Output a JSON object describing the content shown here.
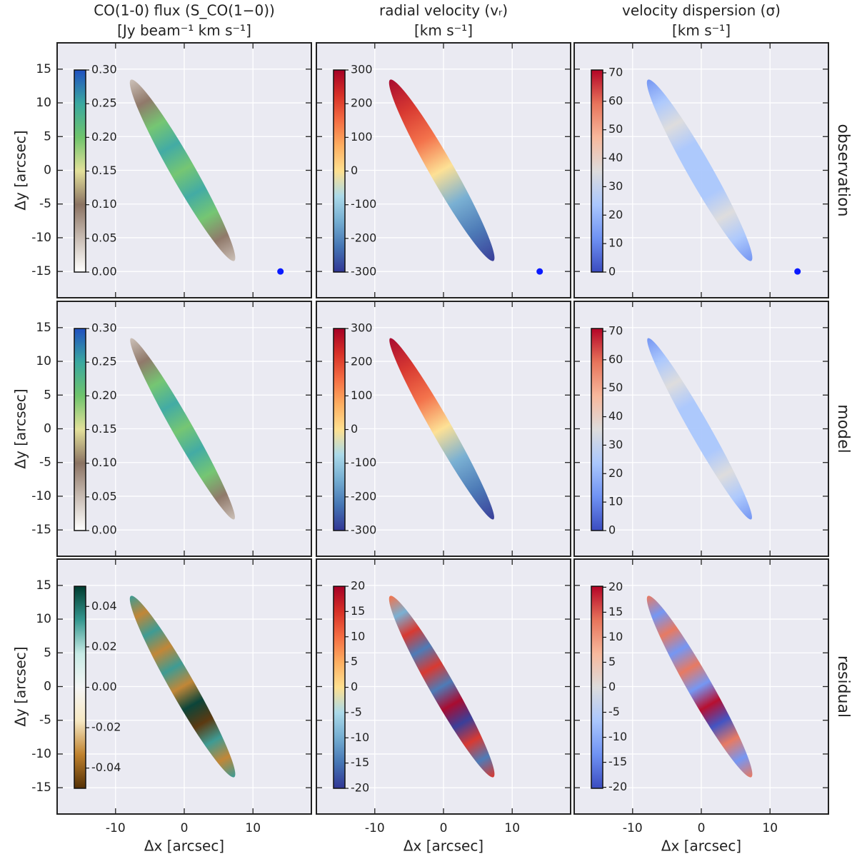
{
  "chart_data": [
    {
      "type": "image",
      "title": [
        "CO(1-0) flux (S_CO(1−0))",
        "[Jy beam⁻¹ km s⁻¹]"
      ],
      "ylabel": "Δy [arcsec]",
      "xlim": [
        -18.5,
        18.5
      ],
      "ylim": [
        -18.9,
        18.9
      ],
      "xticks": [
        -10,
        0,
        10
      ],
      "yticks": [
        -15,
        -10,
        -5,
        0,
        5,
        10,
        15
      ],
      "show_xticklabels": false,
      "show_yticklabels": true,
      "grid": true,
      "clim": [
        0,
        0.3
      ],
      "cticks": [
        {
          "value": 0,
          "label": "0.00"
        },
        0.05,
        {
          "value": 0.1,
          "label": "0.10"
        },
        0.15,
        {
          "value": 0.2,
          "label": "0.20"
        },
        0.25,
        {
          "value": 0.3,
          "label": "0.30"
        }
      ],
      "colormap": [
        "#ffffff",
        "#c9bdb4",
        "#8b7363",
        "#e3e09a",
        "#6fc46c",
        "#3aa8a0",
        "#2050c0"
      ]
    },
    {
      "type": "image",
      "title": [
        "radial velocity (vᵣ)",
        "[km s⁻¹]"
      ],
      "xlim": [
        -18.5,
        18.5
      ],
      "ylim": [
        -18.9,
        18.9
      ],
      "xticks": [
        -10,
        0,
        10
      ],
      "yticks": [
        -15,
        -10,
        -5,
        0,
        5,
        10,
        15
      ],
      "show_xticklabels": false,
      "show_yticklabels": false,
      "grid": true,
      "clim": [
        -300,
        300
      ],
      "cticks": [
        -300,
        -200,
        -100,
        0,
        100,
        200,
        300
      ],
      "colormap": [
        "#313695",
        "#4575b4",
        "#74add1",
        "#abd9e9",
        "#fee090",
        "#fdae61",
        "#f46d43",
        "#d73027",
        "#a50026"
      ]
    },
    {
      "type": "image",
      "title": [
        "velocity dispersion (σ)",
        "[km s⁻¹]"
      ],
      "row_label": "observation",
      "xlim": [
        -18.5,
        18.5
      ],
      "ylim": [
        -18.9,
        18.9
      ],
      "xticks": [
        -10,
        0,
        10
      ],
      "yticks": [
        -15,
        -10,
        -5,
        0,
        5,
        10,
        15
      ],
      "show_xticklabels": false,
      "show_yticklabels": false,
      "grid": true,
      "clim": [
        0,
        71
      ],
      "cticks": [
        0,
        10,
        20,
        30,
        40,
        50,
        60,
        70
      ],
      "colormap": [
        "#3b4cc0",
        "#6f92f3",
        "#aac7fd",
        "#dddcdc",
        "#f7b89c",
        "#e7745b",
        "#b40426"
      ]
    },
    {
      "type": "image",
      "ylabel": "Δy [arcsec]",
      "xlim": [
        -18.5,
        18.5
      ],
      "ylim": [
        -18.9,
        18.9
      ],
      "xticks": [
        -10,
        0,
        10
      ],
      "yticks": [
        -15,
        -10,
        -5,
        0,
        5,
        10,
        15
      ],
      "show_xticklabels": false,
      "show_yticklabels": true,
      "grid": true,
      "clim": [
        0,
        0.3
      ],
      "cticks": [
        {
          "value": 0,
          "label": "0.00"
        },
        0.05,
        {
          "value": 0.1,
          "label": "0.10"
        },
        0.15,
        {
          "value": 0.2,
          "label": "0.20"
        },
        0.25,
        {
          "value": 0.3,
          "label": "0.30"
        }
      ],
      "colormap": [
        "#ffffff",
        "#c9bdb4",
        "#8b7363",
        "#e3e09a",
        "#6fc46c",
        "#3aa8a0",
        "#2050c0"
      ]
    },
    {
      "type": "image",
      "xlim": [
        -18.5,
        18.5
      ],
      "ylim": [
        -18.9,
        18.9
      ],
      "xticks": [
        -10,
        0,
        10
      ],
      "yticks": [
        -15,
        -10,
        -5,
        0,
        5,
        10,
        15
      ],
      "show_xticklabels": false,
      "show_yticklabels": false,
      "grid": true,
      "clim": [
        -300,
        300
      ],
      "cticks": [
        -300,
        -200,
        -100,
        0,
        100,
        200,
        300
      ],
      "colormap": [
        "#313695",
        "#4575b4",
        "#74add1",
        "#abd9e9",
        "#fee090",
        "#fdae61",
        "#f46d43",
        "#d73027",
        "#a50026"
      ]
    },
    {
      "type": "image",
      "row_label": "model",
      "xlim": [
        -18.5,
        18.5
      ],
      "ylim": [
        -18.9,
        18.9
      ],
      "xticks": [
        -10,
        0,
        10
      ],
      "yticks": [
        -15,
        -10,
        -5,
        0,
        5,
        10,
        15
      ],
      "show_xticklabels": false,
      "show_yticklabels": false,
      "grid": true,
      "clim": [
        0,
        71
      ],
      "cticks": [
        0,
        10,
        20,
        30,
        40,
        50,
        60,
        70
      ],
      "colormap": [
        "#3b4cc0",
        "#6f92f3",
        "#aac7fd",
        "#dddcdc",
        "#f7b89c",
        "#e7745b",
        "#b40426"
      ]
    },
    {
      "type": "image",
      "ylabel": "Δy [arcsec]",
      "xlabel": "Δx [arcsec]",
      "xlim": [
        -18.5,
        18.5
      ],
      "ylim": [
        -18.9,
        18.9
      ],
      "xticks": [
        -10,
        0,
        10
      ],
      "yticks": [
        -15,
        -10,
        -5,
        0,
        5,
        10,
        15
      ],
      "show_xticklabels": true,
      "show_yticklabels": true,
      "grid": true,
      "clim": [
        -0.05,
        0.05
      ],
      "cticks": [
        -0.04,
        -0.02,
        {
          "value": 0,
          "label": "0.00"
        },
        0.02,
        0.04
      ],
      "colormap": [
        "#543005",
        "#bf812d",
        "#f6e8c3",
        "#f5f5f5",
        "#c7eae5",
        "#35978f",
        "#003c30"
      ]
    },
    {
      "type": "image",
      "xlabel": "Δx [arcsec]",
      "xlim": [
        -18.5,
        18.5
      ],
      "ylim": [
        -18.9,
        18.9
      ],
      "xticks": [
        -10,
        0,
        10
      ],
      "yticks": [
        -15,
        -10,
        -5,
        0,
        5,
        10,
        15
      ],
      "show_xticklabels": true,
      "show_yticklabels": false,
      "grid": true,
      "clim": [
        -20,
        20
      ],
      "cticks": [
        -20,
        -15,
        -10,
        -5,
        0,
        5,
        10,
        15,
        20
      ],
      "colormap": [
        "#313695",
        "#4575b4",
        "#74add1",
        "#abd9e9",
        "#fee090",
        "#fdae61",
        "#f46d43",
        "#d73027",
        "#a50026"
      ]
    },
    {
      "type": "image",
      "xlabel": "Δx [arcsec]",
      "row_label": "residual",
      "xlim": [
        -18.5,
        18.5
      ],
      "ylim": [
        -18.9,
        18.9
      ],
      "xticks": [
        -10,
        0,
        10
      ],
      "yticks": [
        -15,
        -10,
        -5,
        0,
        5,
        10,
        15
      ],
      "show_xticklabels": true,
      "show_yticklabels": false,
      "grid": true,
      "clim": [
        -20.2,
        20.2
      ],
      "cticks": [
        -20,
        -15,
        -10,
        -5,
        0,
        5,
        10,
        15,
        20
      ],
      "colormap": [
        "#3b4cc0",
        "#6f92f3",
        "#aac7fd",
        "#dddcdc",
        "#f7b89c",
        "#e7745b",
        "#b40426"
      ]
    }
  ]
}
